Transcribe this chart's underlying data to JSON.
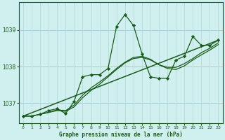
{
  "title": "Graphe pression niveau de la mer (hPa)",
  "background_color": "#cff0ee",
  "grid_color_h": "#e8b0b0",
  "grid_color_v": "#b8dede",
  "line_color": "#1a5c1a",
  "xlim": [
    -0.5,
    23.5
  ],
  "ylim": [
    1036.45,
    1039.75
  ],
  "yticks": [
    1037,
    1038,
    1039
  ],
  "xticks": [
    0,
    1,
    2,
    3,
    4,
    5,
    6,
    7,
    8,
    9,
    10,
    11,
    12,
    13,
    14,
    15,
    16,
    17,
    18,
    19,
    20,
    21,
    22,
    23
  ],
  "main_x": [
    0,
    1,
    2,
    3,
    4,
    5,
    6,
    7,
    8,
    9,
    10,
    11,
    12,
    13,
    14,
    15,
    16,
    17,
    18,
    19,
    20,
    21,
    22,
    23
  ],
  "main_y": [
    1036.65,
    1036.65,
    1036.7,
    1036.8,
    1036.85,
    1036.72,
    1037.05,
    1037.72,
    1037.78,
    1037.78,
    1037.95,
    1039.1,
    1039.42,
    1039.12,
    1038.35,
    1037.72,
    1037.68,
    1037.68,
    1038.18,
    1038.28,
    1038.82,
    1038.58,
    1038.58,
    1038.72
  ],
  "smooth1_y": [
    1036.65,
    1036.65,
    1036.7,
    1036.75,
    1036.8,
    1036.78,
    1036.9,
    1037.15,
    1037.35,
    1037.52,
    1037.72,
    1037.92,
    1038.1,
    1038.22,
    1038.25,
    1038.18,
    1038.05,
    1037.95,
    1037.92,
    1038.02,
    1038.18,
    1038.32,
    1038.45,
    1038.6
  ],
  "smooth2_y": [
    1036.65,
    1036.65,
    1036.7,
    1036.75,
    1036.82,
    1036.8,
    1036.95,
    1037.22,
    1037.42,
    1037.58,
    1037.75,
    1037.95,
    1038.12,
    1038.25,
    1038.28,
    1038.2,
    1038.05,
    1037.98,
    1037.98,
    1038.08,
    1038.22,
    1038.38,
    1038.5,
    1038.65
  ],
  "trend_x": [
    0,
    23
  ],
  "trend_y": [
    1036.65,
    1038.72
  ]
}
